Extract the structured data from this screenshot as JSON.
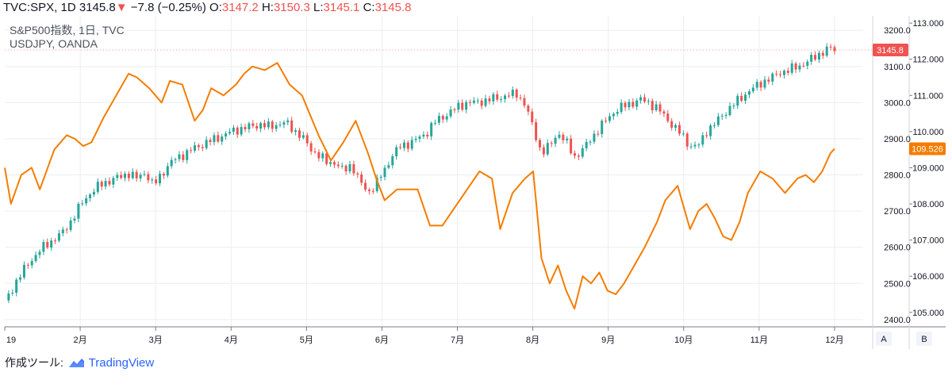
{
  "header": {
    "symbol": "TVC:SPX, 1D",
    "last": "3145.8",
    "arrow": "▼",
    "change": "−7.8 (−0.25%)",
    "o_label": "O:",
    "o_value": "3147.2",
    "h_label": "H:",
    "h_value": "3150.3",
    "l_label": "L:",
    "l_value": "3145.1",
    "c_label": "C:",
    "c_value": "3145.8"
  },
  "legend": {
    "line1": "S&P500指数, 1日, TVC",
    "line2": "USDJPY, OANDA"
  },
  "footer": {
    "prefix": "作成ツール:",
    "brand": "TradingView"
  },
  "scale_buttons": {
    "a": "A",
    "b": "B"
  },
  "colors": {
    "up": "#26a69a",
    "down": "#ef5350",
    "usdjpy": "#f57c00",
    "grid": "#eaedf1",
    "axis": "#787b86"
  },
  "chart_data": {
    "type": "line",
    "x_labels": [
      "19",
      "2月",
      "3月",
      "4月",
      "5月",
      "6月",
      "7月",
      "8月",
      "9月",
      "10月",
      "11月",
      "12月"
    ],
    "left_axis_labels": [
      "3200.0",
      "3100.0",
      "3000.0",
      "2900.0",
      "2800.0",
      "2700.0",
      "2600.0",
      "2500.0",
      "2400.0"
    ],
    "right_axis_labels": [
      "113.000",
      "112.000",
      "111.000",
      "110.000",
      "109.000",
      "108.000",
      "107.000",
      "106.000",
      "105.000"
    ],
    "spx_range": [
      2380,
      3240
    ],
    "usdjpy_range": [
      104.6,
      113.2
    ],
    "last_badges": {
      "spx": "3145.8",
      "usdjpy": "109.526"
    },
    "series": [
      {
        "name": "S&P500指数, 1日, TVC",
        "style": "candles",
        "values": [
          [
            0,
            2447
          ],
          [
            0.3,
            2510
          ],
          [
            0.6,
            2560
          ],
          [
            0.9,
            2597
          ],
          [
            1.1,
            2615
          ],
          [
            1.4,
            2640
          ],
          [
            1.6,
            2672
          ],
          [
            1.8,
            2710
          ],
          [
            2.0,
            2742
          ],
          [
            2.2,
            2763
          ],
          [
            2.4,
            2778
          ],
          [
            2.6,
            2787
          ],
          [
            2.8,
            2795
          ],
          [
            3.0,
            2805
          ],
          [
            3.2,
            2790
          ],
          [
            3.4,
            2808
          ],
          [
            3.6,
            2770
          ],
          [
            3.8,
            2803
          ],
          [
            4.0,
            2832
          ],
          [
            4.2,
            2850
          ],
          [
            4.4,
            2860
          ],
          [
            4.6,
            2875
          ],
          [
            4.8,
            2885
          ],
          [
            5.0,
            2895
          ],
          [
            5.2,
            2905
          ],
          [
            5.4,
            2915
          ],
          [
            5.6,
            2925
          ],
          [
            5.8,
            2930
          ],
          [
            6.0,
            2935
          ],
          [
            6.2,
            2940
          ],
          [
            6.4,
            2933
          ],
          [
            6.6,
            2940
          ],
          [
            6.8,
            2945
          ],
          [
            7.0,
            2925
          ],
          [
            7.2,
            2905
          ],
          [
            7.4,
            2873
          ],
          [
            7.6,
            2855
          ],
          [
            7.8,
            2835
          ],
          [
            8.0,
            2835
          ],
          [
            8.2,
            2810
          ],
          [
            8.4,
            2830
          ],
          [
            8.6,
            2780
          ],
          [
            8.8,
            2752
          ],
          [
            9.0,
            2776
          ],
          [
            9.2,
            2814
          ],
          [
            9.4,
            2857
          ],
          [
            9.6,
            2880
          ],
          [
            9.8,
            2888
          ],
          [
            10.0,
            2900
          ],
          [
            10.2,
            2914
          ],
          [
            10.4,
            2945
          ],
          [
            10.6,
            2960
          ],
          [
            10.8,
            2975
          ],
          [
            11.0,
            2990
          ],
          [
            11.2,
            3000
          ],
          [
            11.4,
            3000
          ],
          [
            11.6,
            3005
          ],
          [
            11.8,
            3010
          ],
          [
            12.0,
            3015
          ],
          [
            12.2,
            3020
          ],
          [
            12.4,
            3025
          ],
          [
            12.6,
            2995
          ],
          [
            12.8,
            2930
          ],
          [
            13.0,
            2860
          ],
          [
            13.2,
            2880
          ],
          [
            13.4,
            2918
          ],
          [
            13.6,
            2890
          ],
          [
            13.8,
            2850
          ],
          [
            14.0,
            2870
          ],
          [
            14.2,
            2900
          ],
          [
            14.4,
            2930
          ],
          [
            14.6,
            2955
          ],
          [
            14.8,
            2980
          ],
          [
            15.0,
            2990
          ],
          [
            15.2,
            3000
          ],
          [
            15.4,
            3008
          ],
          [
            15.6,
            3000
          ],
          [
            15.8,
            2985
          ],
          [
            16.0,
            2960
          ],
          [
            16.2,
            2935
          ],
          [
            16.4,
            2910
          ],
          [
            16.6,
            2880
          ],
          [
            16.8,
            2880
          ],
          [
            17.0,
            2922
          ],
          [
            17.2,
            2942
          ],
          [
            17.4,
            2968
          ],
          [
            17.6,
            2990
          ],
          [
            17.8,
            3010
          ],
          [
            18.0,
            3030
          ],
          [
            18.2,
            3045
          ],
          [
            18.4,
            3060
          ],
          [
            18.6,
            3070
          ],
          [
            18.8,
            3085
          ],
          [
            19.0,
            3090
          ],
          [
            19.2,
            3100
          ],
          [
            19.4,
            3110
          ],
          [
            19.6,
            3125
          ],
          [
            19.8,
            3140
          ],
          [
            20.0,
            3150
          ],
          [
            20.1,
            3145.8
          ]
        ]
      },
      {
        "name": "USDJPY, OANDA",
        "style": "line",
        "values": [
          [
            0,
            109.0
          ],
          [
            0.15,
            108.0
          ],
          [
            0.4,
            108.8
          ],
          [
            0.65,
            109.0
          ],
          [
            0.85,
            108.4
          ],
          [
            1.2,
            109.5
          ],
          [
            1.5,
            109.9
          ],
          [
            1.7,
            109.8
          ],
          [
            1.9,
            109.6
          ],
          [
            2.1,
            109.7
          ],
          [
            2.4,
            110.4
          ],
          [
            2.7,
            111.0
          ],
          [
            3.0,
            111.6
          ],
          [
            3.2,
            111.5
          ],
          [
            3.5,
            111.2
          ],
          [
            3.8,
            110.8
          ],
          [
            4.0,
            111.4
          ],
          [
            4.3,
            111.3
          ],
          [
            4.6,
            110.3
          ],
          [
            4.8,
            110.6
          ],
          [
            5.0,
            111.2
          ],
          [
            5.3,
            111.0
          ],
          [
            5.6,
            111.3
          ],
          [
            5.8,
            111.6
          ],
          [
            6.0,
            111.8
          ],
          [
            6.3,
            111.7
          ],
          [
            6.6,
            111.9
          ],
          [
            6.9,
            111.3
          ],
          [
            7.2,
            111.0
          ],
          [
            7.6,
            109.9
          ],
          [
            7.9,
            109.2
          ],
          [
            8.2,
            109.7
          ],
          [
            8.5,
            110.3
          ],
          [
            8.8,
            109.4
          ],
          [
            9.0,
            108.7
          ],
          [
            9.2,
            108.1
          ],
          [
            9.5,
            108.4
          ],
          [
            9.8,
            108.4
          ],
          [
            10.0,
            108.4
          ],
          [
            10.3,
            107.4
          ],
          [
            10.6,
            107.4
          ],
          [
            10.9,
            107.9
          ],
          [
            11.2,
            108.4
          ],
          [
            11.5,
            108.9
          ],
          [
            11.8,
            108.7
          ],
          [
            12.0,
            107.3
          ],
          [
            12.3,
            108.3
          ],
          [
            12.6,
            108.7
          ],
          [
            12.8,
            108.9
          ],
          [
            13.0,
            106.5
          ],
          [
            13.2,
            105.8
          ],
          [
            13.4,
            106.3
          ],
          [
            13.6,
            105.6
          ],
          [
            13.8,
            105.1
          ],
          [
            14.0,
            106.0
          ],
          [
            14.2,
            105.8
          ],
          [
            14.4,
            106.1
          ],
          [
            14.6,
            105.6
          ],
          [
            14.8,
            105.5
          ],
          [
            15.0,
            105.8
          ],
          [
            15.2,
            106.2
          ],
          [
            15.5,
            106.8
          ],
          [
            15.8,
            107.5
          ],
          [
            16.0,
            108.1
          ],
          [
            16.3,
            108.5
          ],
          [
            16.6,
            107.3
          ],
          [
            16.8,
            107.8
          ],
          [
            17.0,
            108.0
          ],
          [
            17.2,
            107.6
          ],
          [
            17.4,
            107.1
          ],
          [
            17.6,
            107.0
          ],
          [
            17.8,
            107.5
          ],
          [
            18.0,
            108.3
          ],
          [
            18.3,
            108.9
          ],
          [
            18.6,
            108.7
          ],
          [
            18.9,
            108.3
          ],
          [
            19.2,
            108.7
          ],
          [
            19.4,
            108.8
          ],
          [
            19.6,
            108.6
          ],
          [
            19.8,
            108.9
          ],
          [
            20.0,
            109.4
          ],
          [
            20.1,
            109.526
          ]
        ]
      }
    ]
  }
}
